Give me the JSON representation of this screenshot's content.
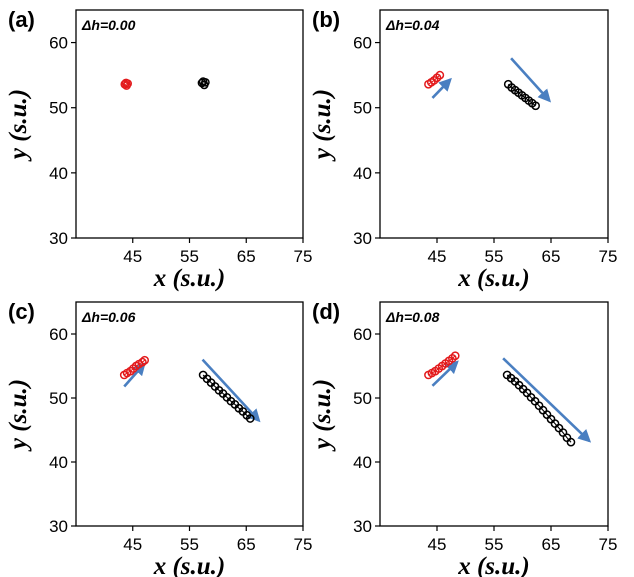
{
  "chart_data": [
    {
      "type": "scatter",
      "panel_label": "(a)",
      "annotation": "Δh=0.00",
      "xlabel": "x (s.u.)",
      "ylabel": "y (s.u.)",
      "xlim": [
        35,
        75
      ],
      "ylim": [
        30,
        65
      ],
      "x_ticks": [
        "45",
        "55",
        "65",
        "75"
      ],
      "y_ticks": [
        "30",
        "40",
        "50",
        "60"
      ],
      "series": [
        {
          "color": "#e31a1c",
          "points": [
            [
              43.6,
              53.6
            ],
            [
              43.9,
              53.4
            ],
            [
              44.1,
              53.7
            ],
            [
              43.8,
              53.8
            ]
          ]
        },
        {
          "color": "#000000",
          "points": [
            [
              57.2,
              53.8
            ],
            [
              57.6,
              53.5
            ],
            [
              57.8,
              53.9
            ],
            [
              57.4,
              54.0
            ]
          ]
        }
      ],
      "arrows": []
    },
    {
      "type": "scatter",
      "panel_label": "(b)",
      "annotation": "Δh=0.04",
      "xlabel": "x (s.u.)",
      "ylabel": "y (s.u.)",
      "xlim": [
        35,
        75
      ],
      "ylim": [
        30,
        65
      ],
      "x_ticks": [
        "45",
        "55",
        "65",
        "75"
      ],
      "y_ticks": [
        "30",
        "40",
        "50",
        "60"
      ],
      "series": [
        {
          "color": "#e31a1c",
          "points": [
            [
              43.5,
              53.6
            ],
            [
              44.0,
              53.9
            ],
            [
              44.5,
              54.2
            ],
            [
              45.0,
              54.6
            ],
            [
              45.5,
              55.0
            ]
          ]
        },
        {
          "color": "#000000",
          "points": [
            [
              57.5,
              53.6
            ],
            [
              58.1,
              53.1
            ],
            [
              58.7,
              52.7
            ],
            [
              59.3,
              52.3
            ],
            [
              59.9,
              51.9
            ],
            [
              60.5,
              51.5
            ],
            [
              61.1,
              51.1
            ],
            [
              61.7,
              50.7
            ],
            [
              62.3,
              50.3
            ]
          ]
        }
      ],
      "arrows": [
        {
          "from": [
            44.2,
            51.5
          ],
          "to": [
            47.3,
            54.3
          ]
        },
        {
          "from": [
            58.0,
            57.6
          ],
          "to": [
            64.7,
            51.1
          ]
        }
      ]
    },
    {
      "type": "scatter",
      "panel_label": "(c)",
      "annotation": "Δh=0.06",
      "xlabel": "x (s.u.)",
      "ylabel": "y (s.u.)",
      "xlim": [
        35,
        75
      ],
      "ylim": [
        30,
        65
      ],
      "x_ticks": [
        "45",
        "55",
        "65",
        "75"
      ],
      "y_ticks": [
        "30",
        "40",
        "50",
        "60"
      ],
      "series": [
        {
          "color": "#e31a1c",
          "points": [
            [
              43.5,
              53.6
            ],
            [
              44.0,
              53.9
            ],
            [
              44.6,
              54.2
            ],
            [
              45.1,
              54.6
            ],
            [
              45.6,
              55.0
            ],
            [
              46.1,
              55.3
            ],
            [
              46.7,
              55.6
            ],
            [
              47.1,
              55.9
            ]
          ]
        },
        {
          "color": "#000000",
          "points": [
            [
              57.4,
              53.6
            ],
            [
              58.1,
              53.0
            ],
            [
              58.8,
              52.4
            ],
            [
              59.5,
              51.8
            ],
            [
              60.2,
              51.2
            ],
            [
              60.9,
              50.7
            ],
            [
              61.6,
              50.1
            ],
            [
              62.3,
              49.5
            ],
            [
              63.0,
              49.0
            ],
            [
              63.7,
              48.4
            ],
            [
              64.4,
              47.9
            ],
            [
              65.1,
              47.3
            ],
            [
              65.7,
              46.8
            ]
          ]
        }
      ],
      "arrows": [
        {
          "from": [
            43.5,
            51.8
          ],
          "to": [
            47.0,
            55.3
          ]
        },
        {
          "from": [
            57.3,
            56.0
          ],
          "to": [
            67.2,
            46.5
          ]
        }
      ]
    },
    {
      "type": "scatter",
      "panel_label": "(d)",
      "annotation": "Δh=0.08",
      "xlabel": "x (s.u.)",
      "ylabel": "y (s.u.)",
      "xlim": [
        35,
        75
      ],
      "ylim": [
        30,
        65
      ],
      "x_ticks": [
        "45",
        "55",
        "65",
        "75"
      ],
      "y_ticks": [
        "30",
        "40",
        "50",
        "60"
      ],
      "series": [
        {
          "color": "#e31a1c",
          "points": [
            [
              43.5,
              53.6
            ],
            [
              44.1,
              53.9
            ],
            [
              44.7,
              54.2
            ],
            [
              45.3,
              54.6
            ],
            [
              45.9,
              55.0
            ],
            [
              46.5,
              55.4
            ],
            [
              47.1,
              55.8
            ],
            [
              47.7,
              56.2
            ],
            [
              48.2,
              56.6
            ]
          ]
        },
        {
          "color": "#000000",
          "points": [
            [
              57.3,
              53.6
            ],
            [
              58.0,
              53.1
            ],
            [
              58.7,
              52.6
            ],
            [
              59.4,
              52.0
            ],
            [
              60.1,
              51.4
            ],
            [
              60.8,
              50.8
            ],
            [
              61.5,
              50.1
            ],
            [
              62.2,
              49.5
            ],
            [
              62.9,
              48.8
            ],
            [
              63.6,
              48.1
            ],
            [
              64.3,
              47.4
            ],
            [
              65.0,
              46.7
            ],
            [
              65.7,
              46.0
            ],
            [
              66.4,
              45.3
            ],
            [
              67.1,
              44.6
            ],
            [
              67.8,
              43.8
            ],
            [
              68.5,
              43.1
            ]
          ]
        }
      ],
      "arrows": [
        {
          "from": [
            44.2,
            51.9
          ],
          "to": [
            48.5,
            55.6
          ]
        },
        {
          "from": [
            56.6,
            56.2
          ],
          "to": [
            71.7,
            43.3
          ]
        }
      ]
    }
  ]
}
